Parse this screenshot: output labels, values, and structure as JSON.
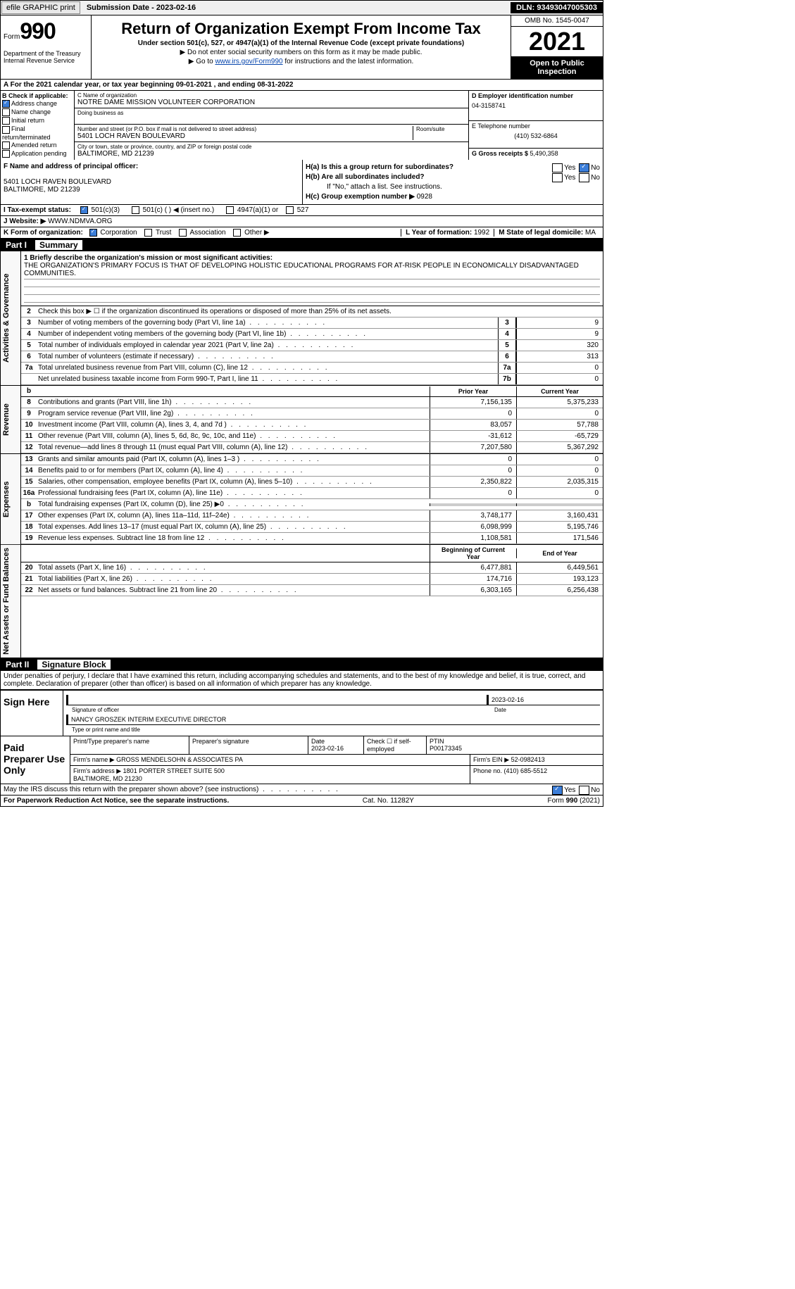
{
  "topbar": {
    "efile": "efile GRAPHIC print",
    "submission_label": "Submission Date - ",
    "submission_date": "2023-02-16",
    "dln_label": "DLN: ",
    "dln": "93493047005303"
  },
  "header": {
    "form_label": "Form",
    "form_number": "990",
    "dept": "Department of the Treasury\nInternal Revenue Service",
    "title": "Return of Organization Exempt From Income Tax",
    "subtitle": "Under section 501(c), 527, or 4947(a)(1) of the Internal Revenue Code (except private foundations)",
    "note1": "▶ Do not enter social security numbers on this form as it may be made public.",
    "note2_pre": "▶ Go to ",
    "note2_link": "www.irs.gov/Form990",
    "note2_post": " for instructions and the latest information.",
    "omb": "OMB No. 1545-0047",
    "year": "2021",
    "open": "Open to Public Inspection"
  },
  "lineA": "A For the 2021 calendar year, or tax year beginning 09-01-2021    , and ending 08-31-2022",
  "colB": {
    "label": "B Check if applicable:",
    "items": [
      "Address change",
      "Name change",
      "Initial return",
      "Final return/terminated",
      "Amended return",
      "Application pending"
    ],
    "checked_index": 0
  },
  "colC": {
    "name_label": "C Name of organization",
    "name": "NOTRE DAME MISSION VOLUNTEER CORPORATION",
    "dba_label": "Doing business as",
    "street_label": "Number and street (or P.O. box if mail is not delivered to street address)",
    "room_label": "Room/suite",
    "street": "5401 LOCH RAVEN BOULEVARD",
    "city_label": "City or town, state or province, country, and ZIP or foreign postal code",
    "city": "BALTIMORE, MD  21239"
  },
  "colD": {
    "ein_label": "D Employer identification number",
    "ein": "04-3158741",
    "phone_label": "E Telephone number",
    "phone": "(410) 532-6864",
    "gross_label": "G Gross receipts $ ",
    "gross": "5,490,358"
  },
  "sectionF": {
    "label": "F  Name and address of principal officer:",
    "addr1": "5401 LOCH RAVEN BOULEVARD",
    "addr2": "BALTIMORE, MD  21239"
  },
  "sectionH": {
    "a": "H(a)  Is this a group return for subordinates?",
    "b": "H(b)  Are all subordinates included?",
    "b_note": "If \"No,\" attach a list. See instructions.",
    "c": "H(c)  Group exemption number ▶",
    "c_val": "0928"
  },
  "taxExempt": {
    "label": "I   Tax-exempt status:",
    "opts": [
      "501(c)(3)",
      "501(c) (  ) ◀ (insert no.)",
      "4947(a)(1) or",
      "527"
    ]
  },
  "website": {
    "label": "J   Website: ▶",
    "value": "WWW.NDMVA.ORG"
  },
  "lineK": {
    "label": "K Form of organization:",
    "opts": [
      "Corporation",
      "Trust",
      "Association",
      "Other ▶"
    ],
    "year_label": "L Year of formation: ",
    "year": "1992",
    "state_label": "M State of legal domicile: ",
    "state": "MA"
  },
  "partI": {
    "num": "Part I",
    "title": "Summary",
    "mission_label": "1   Briefly describe the organization's mission or most significant activities:",
    "mission": "THE ORGANIZATION'S PRIMARY FOCUS IS THAT OF DEVELOPING HOLISTIC EDUCATIONAL PROGRAMS FOR AT-RISK PEOPLE IN ECONOMICALLY DISADVANTAGED COMMUNITIES.",
    "line2": "Check this box ▶ ☐  if the organization discontinued its operations or disposed of more than 25% of its net assets.",
    "sections": [
      {
        "vtab": "Activities & Governance",
        "rows": [
          {
            "n": "3",
            "d": "Number of voting members of the governing body (Part VI, line 1a)",
            "box": "3",
            "v": "9"
          },
          {
            "n": "4",
            "d": "Number of independent voting members of the governing body (Part VI, line 1b)",
            "box": "4",
            "v": "9"
          },
          {
            "n": "5",
            "d": "Total number of individuals employed in calendar year 2021 (Part V, line 2a)",
            "box": "5",
            "v": "320"
          },
          {
            "n": "6",
            "d": "Total number of volunteers (estimate if necessary)",
            "box": "6",
            "v": "313"
          },
          {
            "n": "7a",
            "d": "Total unrelated business revenue from Part VIII, column (C), line 12",
            "box": "7a",
            "v": "0"
          },
          {
            "n": "",
            "d": "Net unrelated business taxable income from Form 990-T, Part I, line 11",
            "box": "7b",
            "v": "0"
          }
        ]
      },
      {
        "vtab": "Revenue",
        "header": {
          "c1": "Prior Year",
          "c2": "Current Year"
        },
        "hb": "b",
        "rows": [
          {
            "n": "8",
            "d": "Contributions and grants (Part VIII, line 1h)",
            "v1": "7,156,135",
            "v2": "5,375,233"
          },
          {
            "n": "9",
            "d": "Program service revenue (Part VIII, line 2g)",
            "v1": "0",
            "v2": "0"
          },
          {
            "n": "10",
            "d": "Investment income (Part VIII, column (A), lines 3, 4, and 7d )",
            "v1": "83,057",
            "v2": "57,788"
          },
          {
            "n": "11",
            "d": "Other revenue (Part VIII, column (A), lines 5, 6d, 8c, 9c, 10c, and 11e)",
            "v1": "-31,612",
            "v2": "-65,729"
          },
          {
            "n": "12",
            "d": "Total revenue—add lines 8 through 11 (must equal Part VIII, column (A), line 12)",
            "v1": "7,207,580",
            "v2": "5,367,292"
          }
        ]
      },
      {
        "vtab": "Expenses",
        "rows": [
          {
            "n": "13",
            "d": "Grants and similar amounts paid (Part IX, column (A), lines 1–3 )",
            "v1": "0",
            "v2": "0"
          },
          {
            "n": "14",
            "d": "Benefits paid to or for members (Part IX, column (A), line 4)",
            "v1": "0",
            "v2": "0"
          },
          {
            "n": "15",
            "d": "Salaries, other compensation, employee benefits (Part IX, column (A), lines 5–10)",
            "v1": "2,350,822",
            "v2": "2,035,315"
          },
          {
            "n": "16a",
            "d": "Professional fundraising fees (Part IX, column (A), line 11e)",
            "v1": "0",
            "v2": "0"
          },
          {
            "n": "b",
            "d": "Total fundraising expenses (Part IX, column (D), line 25) ▶0",
            "v1": "",
            "v2": "",
            "gray": true
          },
          {
            "n": "17",
            "d": "Other expenses (Part IX, column (A), lines 11a–11d, 11f–24e)",
            "v1": "3,748,177",
            "v2": "3,160,431"
          },
          {
            "n": "18",
            "d": "Total expenses. Add lines 13–17 (must equal Part IX, column (A), line 25)",
            "v1": "6,098,999",
            "v2": "5,195,746"
          },
          {
            "n": "19",
            "d": "Revenue less expenses. Subtract line 18 from line 12",
            "v1": "1,108,581",
            "v2": "171,546"
          }
        ]
      },
      {
        "vtab": "Net Assets or Fund Balances",
        "header": {
          "c1": "Beginning of Current Year",
          "c2": "End of Year"
        },
        "rows": [
          {
            "n": "20",
            "d": "Total assets (Part X, line 16)",
            "v1": "6,477,881",
            "v2": "6,449,561"
          },
          {
            "n": "21",
            "d": "Total liabilities (Part X, line 26)",
            "v1": "174,716",
            "v2": "193,123"
          },
          {
            "n": "22",
            "d": "Net assets or fund balances. Subtract line 21 from line 20",
            "v1": "6,303,165",
            "v2": "6,256,438"
          }
        ]
      }
    ]
  },
  "partII": {
    "num": "Part II",
    "title": "Signature Block",
    "penalties": "Under penalties of perjury, I declare that I have examined this return, including accompanying schedules and statements, and to the best of my knowledge and belief, it is true, correct, and complete. Declaration of preparer (other than officer) is based on all information of which preparer has any knowledge."
  },
  "sign": {
    "label": "Sign Here",
    "date": "2023-02-16",
    "sig_label": "Signature of officer",
    "date_label": "Date",
    "name": "NANCY GROSZEK  INTERIM EXECUTIVE DIRECTOR",
    "name_label": "Type or print name and title"
  },
  "preparer": {
    "label": "Paid Preparer Use Only",
    "name_label": "Print/Type preparer's name",
    "sig_label": "Preparer's signature",
    "date_label": "Date",
    "date": "2023-02-16",
    "check_label": "Check ☐ if self-employed",
    "ptin_label": "PTIN",
    "ptin": "P00173345",
    "firm_label": "Firm's name   ▶",
    "firm": "GROSS MENDELSOHN & ASSOCIATES PA",
    "ein_label": "Firm's EIN ▶",
    "ein": "52-0982413",
    "addr_label": "Firm's address ▶",
    "addr": "1801 PORTER STREET SUITE 500\nBALTIMORE, MD  21230",
    "phone_label": "Phone no. ",
    "phone": "(410) 685-5512"
  },
  "discuss": "May the IRS discuss this return with the preparer shown above? (see instructions)",
  "footer": {
    "left": "For Paperwork Reduction Act Notice, see the separate instructions.",
    "mid": "Cat. No. 11282Y",
    "right": "Form 990 (2021)"
  }
}
